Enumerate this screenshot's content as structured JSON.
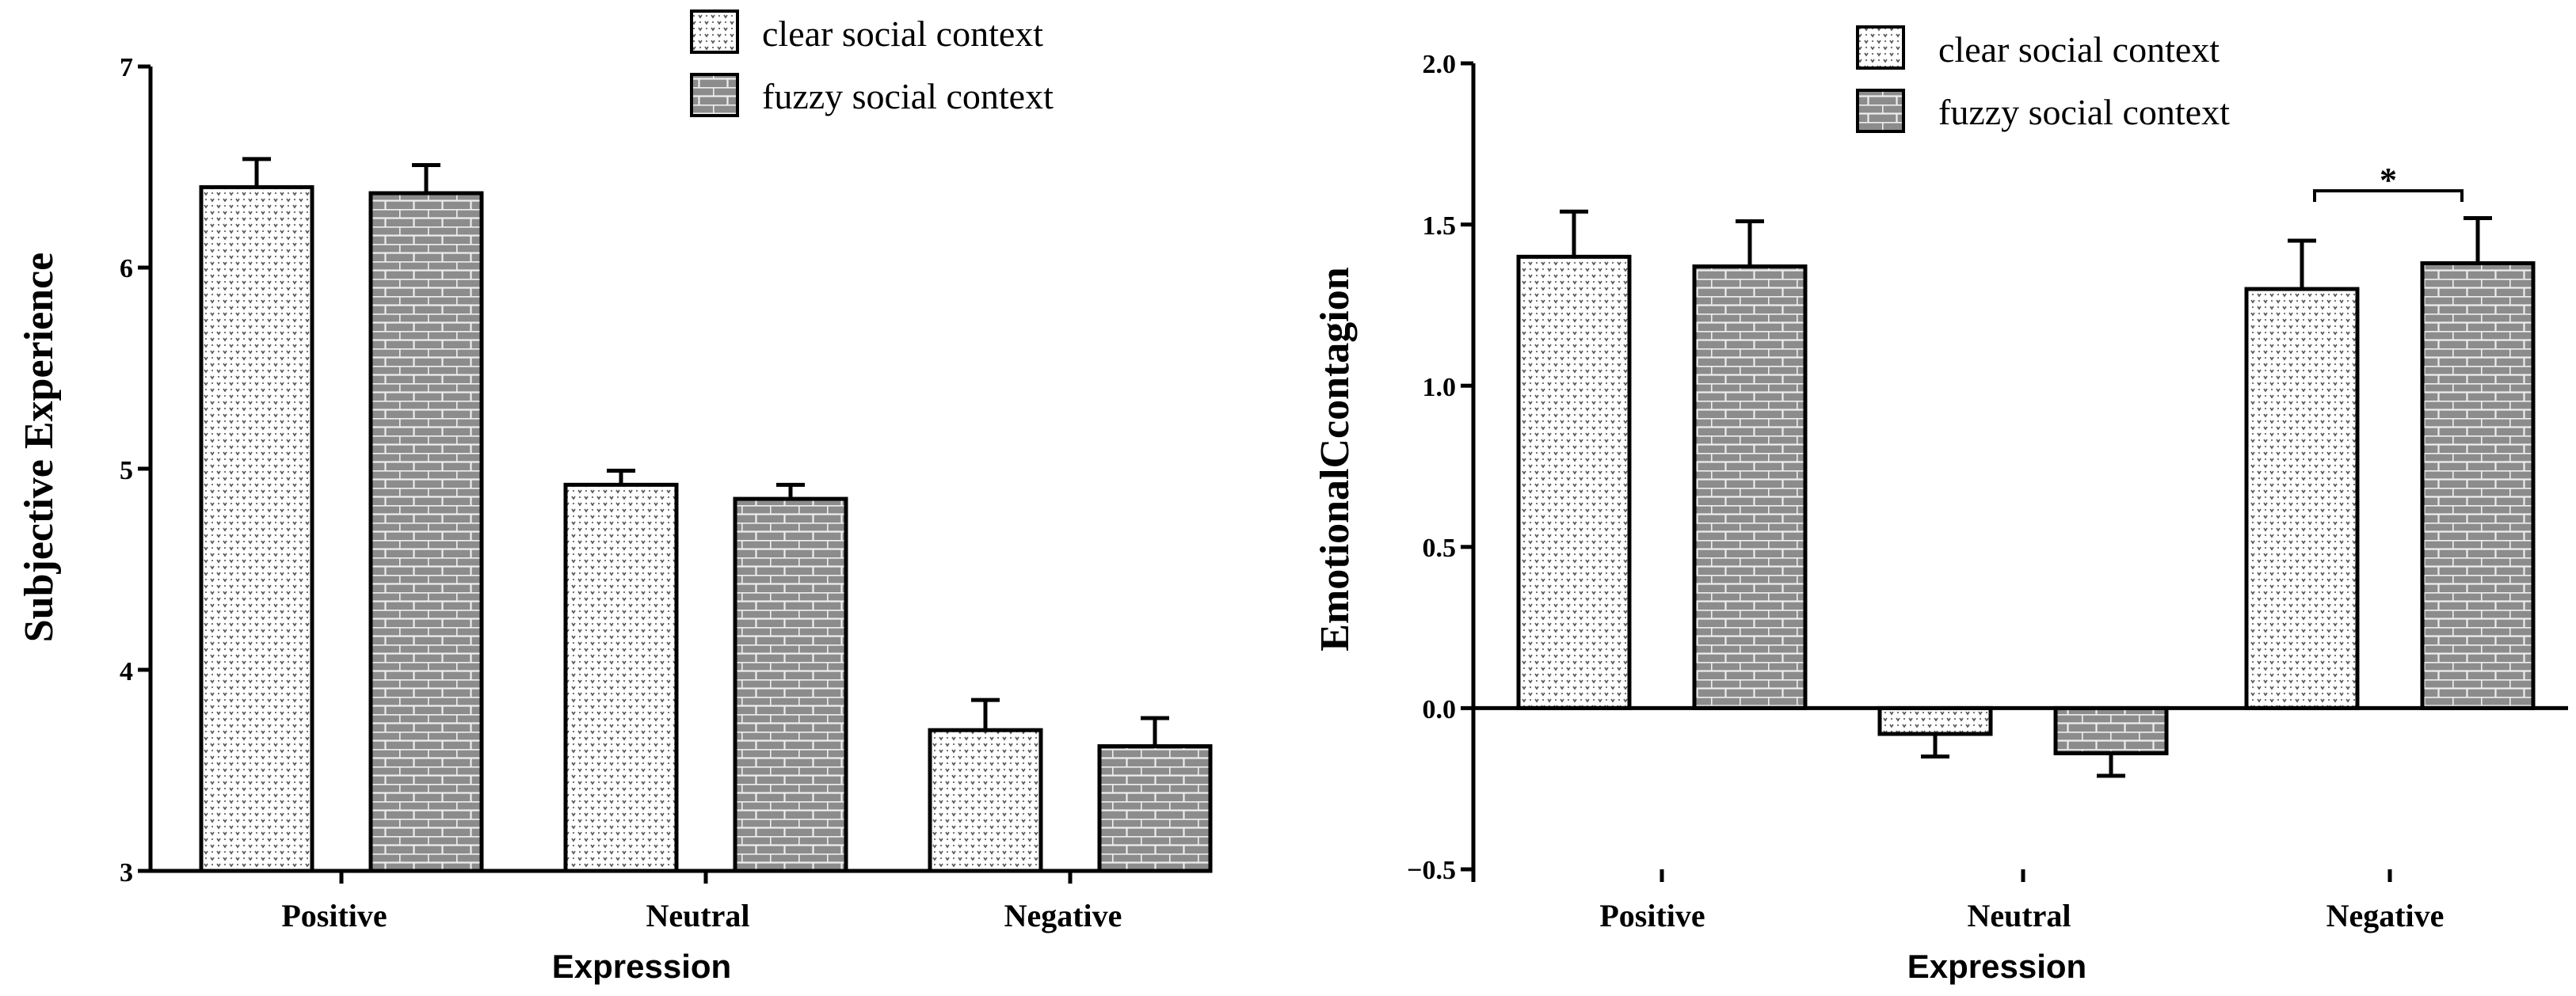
{
  "chart_data": [
    {
      "type": "bar",
      "title": "",
      "xlabel": "Expression",
      "ylabel": "Subjective Experience",
      "ylim": [
        3,
        7
      ],
      "yticks": [
        3,
        4,
        5,
        6,
        7
      ],
      "categories": [
        "Positive",
        "Neutral",
        "Negative"
      ],
      "series": [
        {
          "name": "clear social context",
          "values": [
            6.4,
            4.92,
            3.7
          ],
          "errors": [
            0.14,
            0.07,
            0.15
          ]
        },
        {
          "name": "fuzzy social context",
          "values": [
            6.37,
            4.85,
            3.62
          ],
          "errors": [
            0.14,
            0.07,
            0.14
          ]
        }
      ],
      "annotations": []
    },
    {
      "type": "bar",
      "title": "",
      "xlabel": "Expression",
      "ylabel": "EmotionalCcontagion",
      "ylim": [
        -0.5,
        2.0
      ],
      "yticks": [
        "−0.5",
        "0.0",
        "0.5",
        "1.0",
        "1.5",
        "2.0"
      ],
      "categories": [
        "Positive",
        "Neutral",
        "Negative"
      ],
      "series": [
        {
          "name": "clear social context",
          "values": [
            1.4,
            -0.08,
            1.3
          ],
          "errors": [
            0.14,
            0.07,
            0.15
          ]
        },
        {
          "name": "fuzzy social context",
          "values": [
            1.37,
            -0.14,
            1.38
          ],
          "errors": [
            0.14,
            0.07,
            0.14
          ]
        }
      ],
      "annotations": [
        {
          "text": "*",
          "category": "Negative"
        }
      ]
    }
  ]
}
